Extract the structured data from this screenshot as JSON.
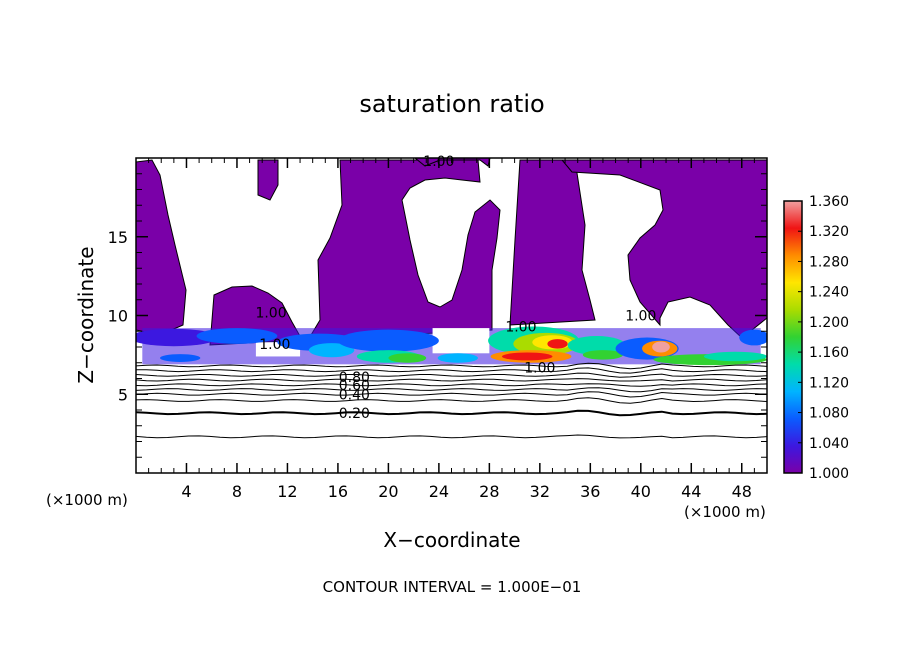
{
  "chart_data": {
    "type": "heatmap",
    "title": "saturation ratio",
    "xlabel": "X−coordinate",
    "ylabel": "Z−coordinate",
    "x_unit_left": "(×1000 m)",
    "x_unit_right": "(×1000 m)",
    "xlim": [
      0,
      50
    ],
    "ylim": [
      0,
      20
    ],
    "x_ticks": [
      4,
      8,
      12,
      16,
      20,
      24,
      28,
      32,
      36,
      40,
      44,
      48
    ],
    "y_ticks": [
      5,
      10,
      15
    ],
    "footer": "CONTOUR INTERVAL = 1.000E−01",
    "colorbar": {
      "min": 1.0,
      "max": 1.36,
      "labels": [
        "1.360",
        "1.320",
        "1.280",
        "1.240",
        "1.200",
        "1.160",
        "1.120",
        "1.080",
        "1.040",
        "1.000"
      ],
      "colors": [
        "#7a00a8",
        "#3c18e0",
        "#0a5cff",
        "#00b4ff",
        "#00dcaa",
        "#32d232",
        "#aadc00",
        "#ffe600",
        "#ff8c00",
        "#f01414",
        "#f0a0a0"
      ]
    },
    "contour_labels": [
      {
        "text": "1.00",
        "x": 24.0,
        "y": 19.8
      },
      {
        "text": "1.00",
        "x": 10.7,
        "y": 10.2
      },
      {
        "text": "1.00",
        "x": 11.0,
        "y": 8.2
      },
      {
        "text": "1.00",
        "x": 30.5,
        "y": 9.3
      },
      {
        "text": "1.00",
        "x": 40.0,
        "y": 10.0
      },
      {
        "text": "1.00",
        "x": 32.0,
        "y": 6.7
      },
      {
        "text": "0.80",
        "x": 17.3,
        "y": 6.1
      },
      {
        "text": "0.60",
        "x": 17.3,
        "y": 5.6
      },
      {
        "text": "0.40",
        "x": 17.3,
        "y": 5.0
      },
      {
        "text": "0.20",
        "x": 17.3,
        "y": 3.8
      }
    ],
    "contour_lines_z": [
      6.8,
      6.5,
      6.2,
      5.9,
      5.6,
      5.3,
      5.0,
      4.6,
      3.8,
      2.3
    ]
  }
}
